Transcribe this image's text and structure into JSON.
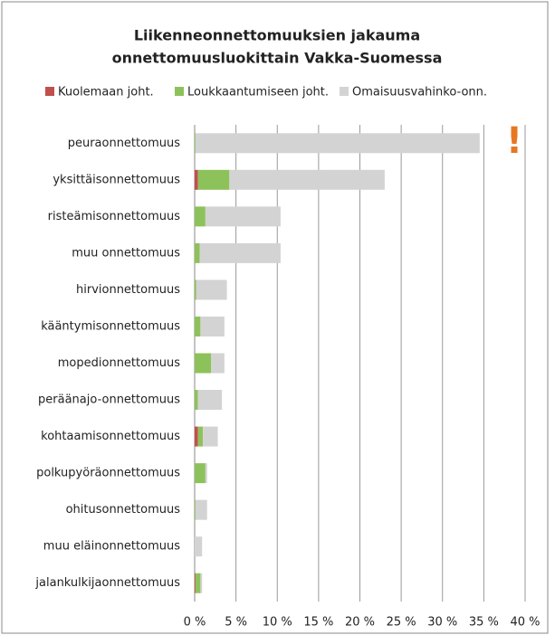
{
  "chart_data": {
    "type": "stacked-bar-horizontal",
    "title": "Liikenneonnettomuuksien jakauma",
    "subtitle": "onnettomuusluokittain Vakka-Suomessa",
    "annotation": "!",
    "categories": [
      "peuraonnettomuus",
      "yksittäisonnettomuus",
      "risteämisonnettomuus",
      "muu onnettomuus",
      "hirvionnettomuus",
      "kääntymisonnettomuus",
      "mopedionnettomuus",
      "peräänajo-onnettomuus",
      "kohtaamisonnettomuus",
      "polkupyöräonnettomuus",
      "ohitusonnettomuus",
      "muu eläinonnettomuus",
      "jalankulkijaonnettomuus"
    ],
    "series": [
      {
        "name": "Kuolemaan joht.",
        "color": "#c0504d",
        "values": [
          0,
          0.4,
          0,
          0,
          0,
          0,
          0,
          0,
          0.4,
          0,
          0,
          0,
          0.1
        ]
      },
      {
        "name": "Loukkaantumiseen joht.",
        "color": "#8dc25a",
        "values": [
          0.1,
          3.8,
          1.3,
          0.6,
          0.2,
          0.7,
          2.0,
          0.4,
          0.6,
          1.3,
          0.1,
          0,
          0.6
        ]
      },
      {
        "name": "Omaisuusvahinko-onn.",
        "color": "#d3d3d3",
        "values": [
          34.4,
          18.8,
          9.1,
          9.8,
          3.7,
          2.9,
          1.6,
          2.9,
          1.8,
          0.2,
          1.4,
          0.9,
          0.2
        ]
      }
    ],
    "xlim": [
      0,
      40
    ],
    "xticks": [
      {
        "value": 0,
        "label": "0 %"
      },
      {
        "value": 5,
        "label": "5 %"
      },
      {
        "value": 10,
        "label": "10 %"
      },
      {
        "value": 15,
        "label": "15 %"
      },
      {
        "value": 20,
        "label": "20 %"
      },
      {
        "value": 25,
        "label": "25 %"
      },
      {
        "value": 30,
        "label": "30 %"
      },
      {
        "value": 35,
        "label": "35 %"
      },
      {
        "value": 40,
        "label": "40 %"
      }
    ],
    "grid": true,
    "legend": "top"
  }
}
